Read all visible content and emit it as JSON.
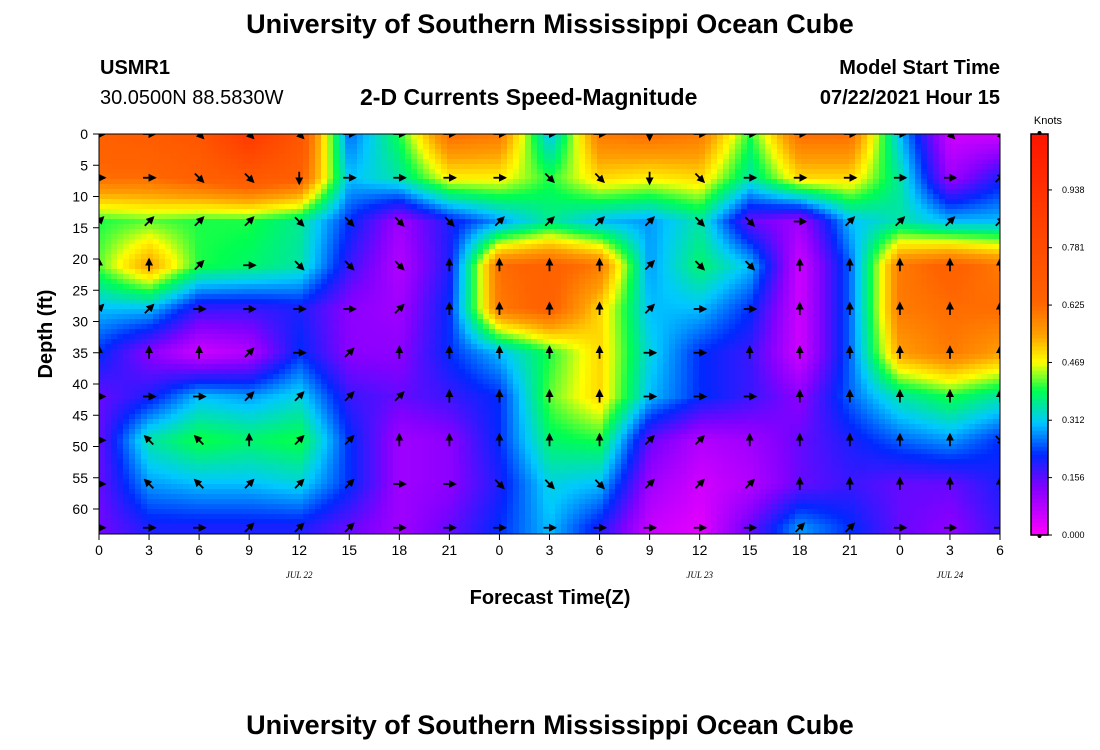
{
  "header": {
    "title": "University of Southern Mississippi Ocean Cube",
    "station": "USMR1",
    "coords": "30.0500N  88.5830W",
    "plot_title": "2-D Currents Speed-Magnitude",
    "model_label": "Model Start Time",
    "model_time": "07/22/2021 Hour 15",
    "footer_title": "University of Southern Mississippi Ocean Cube"
  },
  "chart_data": {
    "type": "heatmap",
    "title": "2-D Currents Speed-Magnitude",
    "xlabel": "Forecast Time(Z)",
    "ylabel": "Depth (ft)",
    "x_tick_labels": [
      "0",
      "3",
      "6",
      "9",
      "12",
      "15",
      "18",
      "21",
      "0",
      "3",
      "6",
      "9",
      "12",
      "15",
      "18",
      "21",
      "0",
      "3",
      "6"
    ],
    "date_labels": [
      "JUL 22",
      "JUL 23",
      "JUL 24"
    ],
    "y_tick_labels": [
      "0",
      "5",
      "10",
      "15",
      "20",
      "25",
      "30",
      "35",
      "40",
      "45",
      "50",
      "55",
      "60"
    ],
    "ylim": [
      64,
      0
    ],
    "colorbar": {
      "label": "Knots",
      "tick_labels": [
        "0.000",
        "0.156",
        "0.312",
        "0.469",
        "0.625",
        "0.781",
        "0.938"
      ],
      "range": [
        0,
        1.09
      ]
    },
    "x_hours": [
      0,
      3,
      6,
      9,
      12,
      15,
      18,
      21,
      24,
      27,
      30,
      33,
      36,
      39,
      42,
      45,
      48,
      51,
      54
    ],
    "depths": [
      0,
      7,
      14,
      21,
      28,
      35,
      42,
      49,
      56,
      63
    ],
    "speed_knots": [
      [
        0.66,
        0.68,
        0.72,
        0.9,
        0.72,
        0.25,
        0.4,
        0.62,
        0.6,
        0.3,
        0.6,
        0.62,
        0.6,
        0.4,
        0.62,
        0.62,
        0.3,
        0.05,
        0.05
      ],
      [
        0.62,
        0.62,
        0.66,
        0.7,
        0.66,
        0.3,
        0.35,
        0.48,
        0.48,
        0.4,
        0.5,
        0.48,
        0.5,
        0.35,
        0.5,
        0.5,
        0.35,
        0.1,
        0.2
      ],
      [
        0.4,
        0.42,
        0.4,
        0.4,
        0.36,
        0.22,
        0.1,
        0.2,
        0.28,
        0.36,
        0.3,
        0.28,
        0.35,
        0.15,
        0.1,
        0.3,
        0.35,
        0.3,
        0.3
      ],
      [
        0.42,
        0.55,
        0.4,
        0.38,
        0.35,
        0.18,
        0.08,
        0.2,
        0.62,
        0.65,
        0.6,
        0.28,
        0.38,
        0.3,
        0.05,
        0.25,
        0.6,
        0.65,
        0.6
      ],
      [
        0.3,
        0.3,
        0.18,
        0.18,
        0.2,
        0.12,
        0.1,
        0.22,
        0.6,
        0.65,
        0.5,
        0.3,
        0.3,
        0.22,
        0.05,
        0.25,
        0.6,
        0.62,
        0.62
      ],
      [
        0.22,
        0.12,
        0.05,
        0.08,
        0.22,
        0.12,
        0.12,
        0.22,
        0.3,
        0.4,
        0.5,
        0.32,
        0.22,
        0.18,
        0.05,
        0.25,
        0.55,
        0.6,
        0.55
      ],
      [
        0.15,
        0.2,
        0.3,
        0.28,
        0.32,
        0.18,
        0.15,
        0.18,
        0.22,
        0.42,
        0.5,
        0.3,
        0.22,
        0.18,
        0.12,
        0.25,
        0.35,
        0.4,
        0.35
      ],
      [
        0.15,
        0.35,
        0.4,
        0.38,
        0.4,
        0.22,
        0.1,
        0.12,
        0.22,
        0.38,
        0.4,
        0.15,
        0.08,
        0.1,
        0.15,
        0.2,
        0.25,
        0.28,
        0.22
      ],
      [
        0.15,
        0.28,
        0.3,
        0.3,
        0.32,
        0.22,
        0.1,
        0.12,
        0.2,
        0.32,
        0.3,
        0.1,
        0.05,
        0.08,
        0.15,
        0.18,
        0.15,
        0.15,
        0.2
      ],
      [
        0.14,
        0.2,
        0.2,
        0.2,
        0.2,
        0.15,
        0.1,
        0.15,
        0.22,
        0.3,
        0.2,
        0.06,
        0.03,
        0.15,
        0.28,
        0.22,
        0.15,
        0.12,
        0.18
      ]
    ],
    "arrow_hours": [
      0,
      3,
      6,
      9,
      12,
      15,
      18,
      21,
      24,
      27,
      30,
      33,
      36,
      39,
      42,
      45,
      48,
      51,
      54
    ],
    "arrow_depths": [
      0,
      7,
      14,
      21,
      28,
      35,
      42,
      49,
      56,
      63
    ],
    "arrow_dir_deg": [
      [
        90,
        90,
        135,
        135,
        135,
        90,
        90,
        90,
        90,
        90,
        90,
        180,
        90,
        90,
        90,
        90,
        90,
        135,
        135
      ],
      [
        90,
        90,
        135,
        135,
        180,
        90,
        90,
        90,
        90,
        135,
        135,
        180,
        135,
        90,
        90,
        90,
        90,
        90,
        45
      ],
      [
        45,
        45,
        45,
        45,
        135,
        135,
        135,
        135,
        45,
        45,
        45,
        45,
        135,
        135,
        90,
        45,
        45,
        45,
        45
      ],
      [
        0,
        0,
        45,
        90,
        135,
        135,
        135,
        0,
        0,
        0,
        0,
        45,
        135,
        135,
        0,
        0,
        0,
        0,
        0
      ],
      [
        45,
        45,
        90,
        90,
        90,
        90,
        45,
        0,
        0,
        0,
        0,
        45,
        90,
        90,
        0,
        0,
        0,
        0,
        0
      ],
      [
        0,
        0,
        0,
        45,
        90,
        45,
        0,
        0,
        0,
        0,
        0,
        90,
        90,
        0,
        0,
        0,
        0,
        0,
        0
      ],
      [
        90,
        90,
        90,
        45,
        45,
        45,
        45,
        0,
        0,
        0,
        0,
        90,
        90,
        90,
        0,
        0,
        0,
        0,
        0
      ],
      [
        90,
        315,
        315,
        0,
        45,
        45,
        0,
        0,
        0,
        0,
        0,
        45,
        45,
        0,
        0,
        0,
        0,
        0,
        135
      ],
      [
        90,
        315,
        315,
        45,
        45,
        45,
        90,
        90,
        135,
        135,
        135,
        45,
        45,
        45,
        0,
        0,
        0,
        0,
        0
      ],
      [
        90,
        90,
        90,
        45,
        45,
        45,
        90,
        90,
        90,
        90,
        90,
        90,
        90,
        90,
        45,
        45,
        90,
        90,
        90
      ]
    ]
  }
}
